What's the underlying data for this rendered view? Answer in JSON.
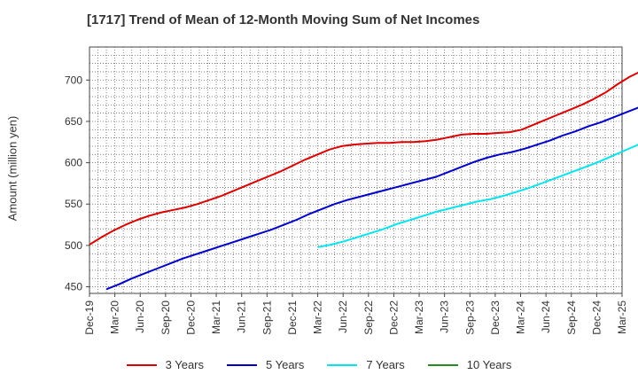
{
  "chart_data": {
    "type": "line",
    "title": "[1717]  Trend of Mean of 12-Month Moving Sum of Net Incomes",
    "xlabel": "",
    "ylabel": "Amount (million yen)",
    "ylim": [
      442,
      740
    ],
    "yticks": [
      450,
      500,
      550,
      600,
      650,
      700
    ],
    "x_tick_labels": [
      "Dec-19",
      "Mar-20",
      "Jun-20",
      "Sep-20",
      "Dec-20",
      "Mar-21",
      "Jun-21",
      "Sep-21",
      "Dec-21",
      "Mar-22",
      "Jun-22",
      "Sep-22",
      "Dec-22",
      "Mar-23",
      "Jun-23",
      "Sep-23",
      "Dec-23",
      "Mar-24",
      "Jun-24",
      "Sep-24",
      "Dec-24",
      "Mar-25"
    ],
    "grid": true,
    "legend_position": "bottom",
    "series": [
      {
        "name": "3 Years",
        "color": "#dd0000",
        "values": [
          501,
          510,
          518,
          525,
          531,
          536,
          540,
          543,
          546,
          550,
          555,
          560,
          566,
          572,
          578,
          584,
          590,
          597,
          604,
          610,
          616,
          620,
          622,
          623,
          624,
          624,
          625,
          625,
          626,
          628,
          631,
          634,
          635,
          635,
          636,
          637,
          640,
          646,
          652,
          658,
          664,
          670,
          677,
          685,
          695,
          704,
          711,
          718,
          725,
          732
        ]
      },
      {
        "name": "5 Years",
        "color": "#0000cc",
        "values": [
          null,
          447,
          453,
          460,
          466,
          472,
          478,
          484,
          489,
          494,
          499,
          504,
          509,
          514,
          519,
          525,
          531,
          538,
          544,
          550,
          555,
          559,
          563,
          567,
          571,
          575,
          579,
          583,
          589,
          595,
          601,
          606,
          610,
          613,
          617,
          622,
          627,
          633,
          638,
          644,
          649,
          655,
          661,
          667,
          673,
          678,
          684,
          689
        ]
      },
      {
        "name": "7 Years",
        "color": "#00e5ee",
        "values": [
          null,
          null,
          null,
          null,
          null,
          null,
          null,
          null,
          null,
          null,
          null,
          null,
          null,
          null,
          null,
          null,
          null,
          null,
          null,
          null,
          null,
          null,
          null,
          null,
          null,
          null,
          null,
          null,
          null,
          null,
          null,
          null,
          null,
          null,
          null,
          null,
          null,
          null,
          null,
          null,
          null,
          null,
          null,
          null,
          null,
          null,
          null,
          null,
          null,
          null
        ]
      },
      {
        "name": "10 Years",
        "color": "#228b22",
        "values": []
      }
    ],
    "series7_points": [
      {
        "i": 27,
        "v": 498
      },
      {
        "i": 28,
        "v": 501
      },
      {
        "i": 29,
        "v": 505
      },
      {
        "i": 30,
        "v": 510
      },
      {
        "i": 31,
        "v": 515
      },
      {
        "i": 32,
        "v": 520
      },
      {
        "i": 33,
        "v": 526
      },
      {
        "i": 34,
        "v": 531
      },
      {
        "i": 35,
        "v": 536
      },
      {
        "i": 36,
        "v": 541
      },
      {
        "i": 37,
        "v": 545
      },
      {
        "i": 38,
        "v": 549
      },
      {
        "i": 39,
        "v": 553
      },
      {
        "i": 40,
        "v": 556
      },
      {
        "i": 41,
        "v": 560
      },
      {
        "i": 42,
        "v": 565
      },
      {
        "i": 43,
        "v": 570
      },
      {
        "i": 44,
        "v": 576
      },
      {
        "i": 45,
        "v": 582
      },
      {
        "i": 46,
        "v": 588
      },
      {
        "i": 47,
        "v": 594
      },
      {
        "i": 48,
        "v": 600
      },
      {
        "i": 49,
        "v": 607
      },
      {
        "i": 50,
        "v": 614
      },
      {
        "i": 51,
        "v": 621
      },
      {
        "i": 52,
        "v": 628
      },
      {
        "i": 53,
        "v": 635
      },
      {
        "i": 54,
        "v": 641
      },
      {
        "i": 55,
        "v": 645
      }
    ]
  }
}
